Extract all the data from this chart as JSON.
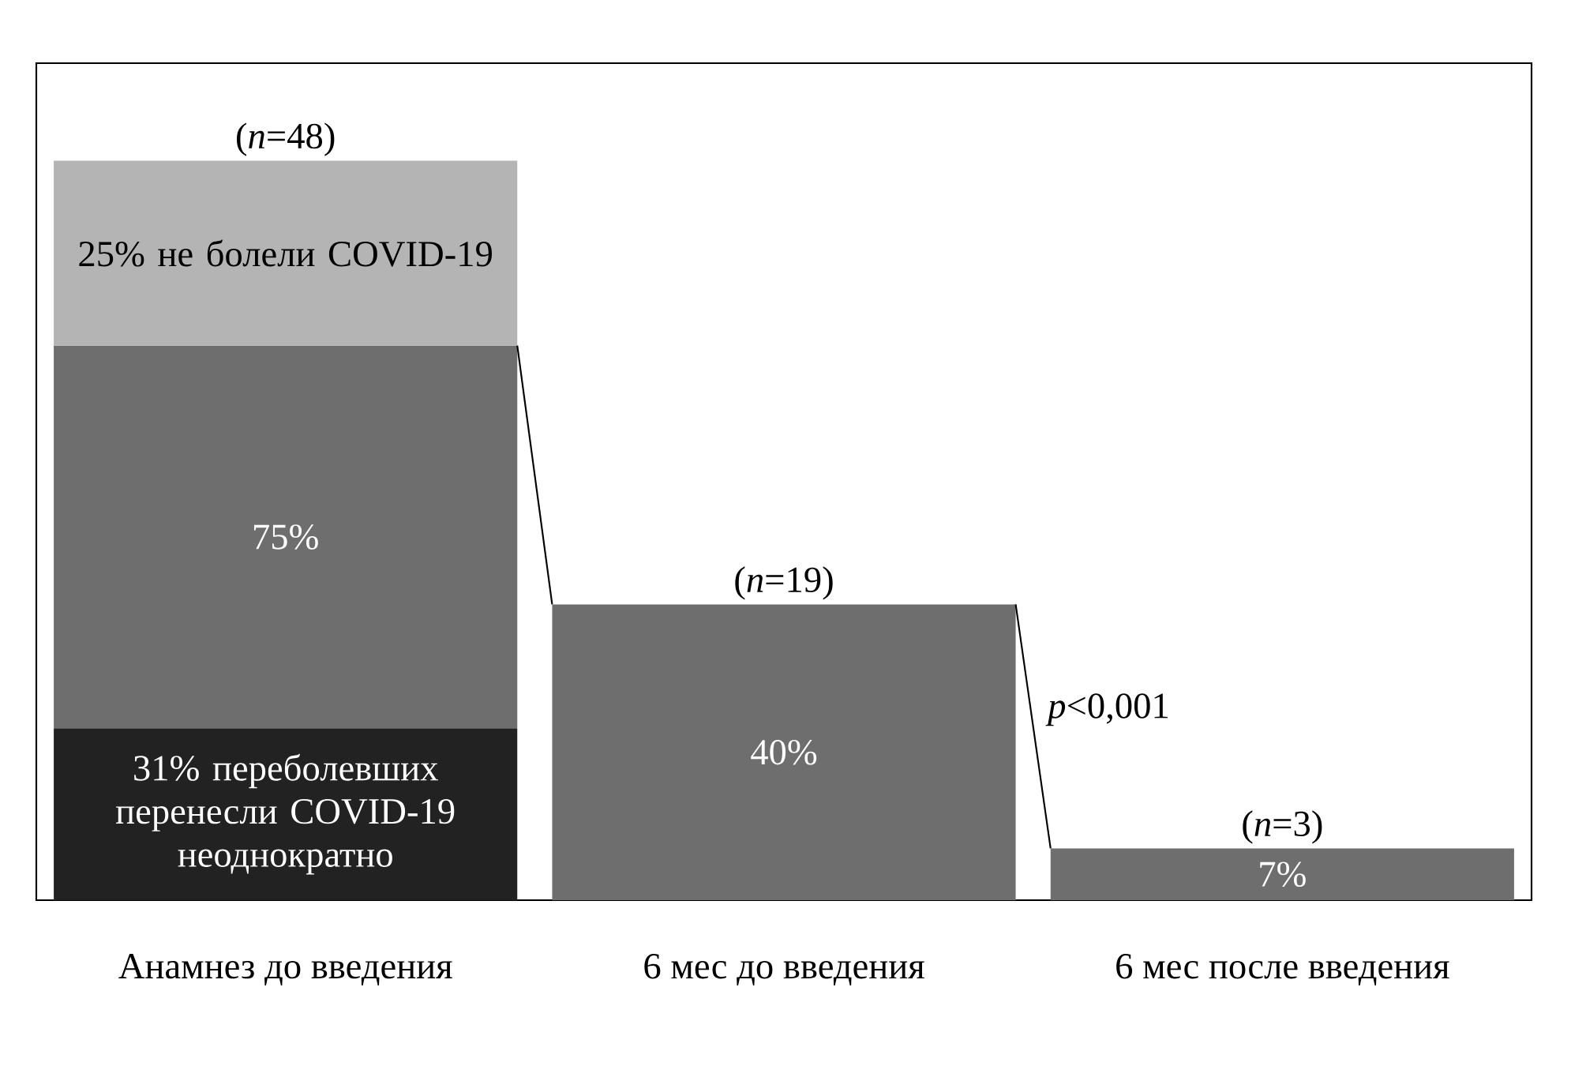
{
  "chart_data": {
    "type": "bar",
    "stacked": true,
    "ylim": [
      0,
      113.2
    ],
    "tick_labels": "x",
    "categories": [
      "Анамнез до введения",
      "6 мес до введения",
      "6 мес после введения"
    ],
    "series": [
      {
        "color": "#222222",
        "values": [
          23.25,
          null,
          null
        ]
      },
      {
        "color": "#6e6e6e",
        "values": [
          51.75,
          40,
          7
        ],
        "value_labels": [
          null,
          "40%",
          "7%"
        ]
      },
      {
        "color": "#b4b4b4",
        "values": [
          25,
          null,
          null
        ],
        "value_labels": [
          "25% не болели COVID-19",
          null,
          null
        ]
      }
    ],
    "annotations": [
      "31% переболевших перенесли COVID-19 неоднократно",
      "75%",
      {
        "text": "(*n*=48)",
        "x": "Анамнез до введения",
        "y": 100
      },
      {
        "text": "(*n*=19)",
        "x": "6 мес до введения",
        "y": 40
      },
      {
        "text": "(*n*=3)",
        "x": "6 мес после введения",
        "y": 7
      },
      "*p*<0,001"
    ]
  }
}
